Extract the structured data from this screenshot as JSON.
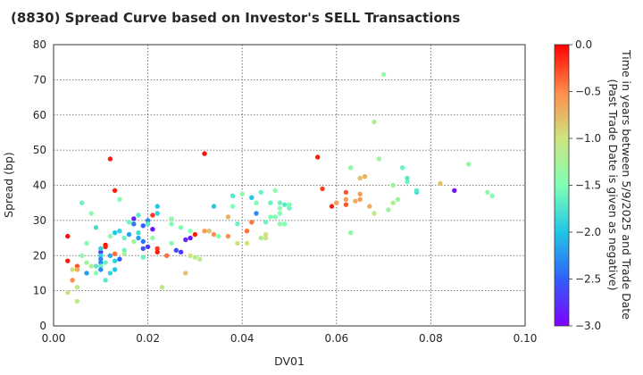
{
  "chart_data": {
    "type": "scatter",
    "title": "(8830)   Spread Curve based on Investor's SELL Transactions",
    "xlabel": "DV01",
    "ylabel": "Spread (bp)",
    "xlim": [
      0,
      0.1
    ],
    "ylim": [
      0,
      80
    ],
    "x_ticks": [
      "0.00",
      "0.02",
      "0.04",
      "0.06",
      "0.08",
      "0.10"
    ],
    "y_ticks": [
      "0",
      "10",
      "20",
      "30",
      "40",
      "50",
      "60",
      "70",
      "80"
    ],
    "grid": true,
    "colorbar": {
      "label_line1": "Time in years between 5/9/2025 and Trade Date",
      "label_line2": "(Past Trade Date is given as negative)",
      "range": [
        -3.0,
        0.0
      ],
      "ticks": [
        "0.0",
        "−0.5",
        "−1.0",
        "−1.5",
        "−2.0",
        "−2.5",
        "−3.0"
      ],
      "colormap": "rainbow"
    },
    "points": [
      [
        0.003,
        25.5,
        -0.05
      ],
      [
        0.003,
        18.5,
        -0.1
      ],
      [
        0.003,
        9.5,
        -1.0
      ],
      [
        0.004,
        16,
        -1.0
      ],
      [
        0.004,
        13,
        -0.5
      ],
      [
        0.005,
        17,
        -0.3
      ],
      [
        0.005,
        16,
        -0.7
      ],
      [
        0.005,
        11,
        -1.1
      ],
      [
        0.005,
        7,
        -1.1
      ],
      [
        0.006,
        35,
        -1.6
      ],
      [
        0.006,
        20,
        -1.4
      ],
      [
        0.007,
        23.5,
        -1.5
      ],
      [
        0.007,
        18,
        -1.3
      ],
      [
        0.007,
        15,
        -2.2
      ],
      [
        0.008,
        17,
        -1.2
      ],
      [
        0.008,
        32,
        -1.4
      ],
      [
        0.009,
        28,
        -1.8
      ],
      [
        0.009,
        17,
        -1.7
      ],
      [
        0.009,
        15,
        -1.5
      ],
      [
        0.01,
        21,
        -2.7
      ],
      [
        0.01,
        22,
        -1.9
      ],
      [
        0.01,
        20,
        -1.9
      ],
      [
        0.01,
        19,
        -2.3
      ],
      [
        0.01,
        18,
        -2.3
      ],
      [
        0.01,
        17,
        -1.6
      ],
      [
        0.01,
        16,
        -2.3
      ],
      [
        0.011,
        23,
        -0.05
      ],
      [
        0.011,
        22.5,
        -0.1
      ],
      [
        0.011,
        18,
        -1.6
      ],
      [
        0.011,
        13,
        -1.7
      ],
      [
        0.012,
        47.5,
        -0.1
      ],
      [
        0.012,
        20,
        -2.1
      ],
      [
        0.012,
        15,
        -1.9
      ],
      [
        0.012,
        25.5,
        -1.4
      ],
      [
        0.013,
        26.5,
        -2.0
      ],
      [
        0.013,
        20.5,
        -0.4
      ],
      [
        0.013,
        18.5,
        -1.9
      ],
      [
        0.013,
        16,
        -2.0
      ],
      [
        0.013,
        38.5,
        -0.1
      ],
      [
        0.014,
        27,
        -1.9
      ],
      [
        0.014,
        19,
        -2.5
      ],
      [
        0.014,
        36,
        -1.5
      ],
      [
        0.015,
        25,
        -1.6
      ],
      [
        0.015,
        21.5,
        -1.6
      ],
      [
        0.015,
        20.5,
        -1.2
      ],
      [
        0.016,
        29.5,
        -1.6
      ],
      [
        0.016,
        26,
        -2.2
      ],
      [
        0.017,
        30.5,
        -2.8
      ],
      [
        0.017,
        29,
        -2.4
      ],
      [
        0.017,
        24,
        -1.3
      ],
      [
        0.018,
        31.5,
        -1.7
      ],
      [
        0.018,
        26.5,
        -1.8
      ],
      [
        0.018,
        25,
        -2.2
      ],
      [
        0.019,
        28.5,
        -2.5
      ],
      [
        0.019,
        24,
        -2.4
      ],
      [
        0.019,
        22,
        -2.6
      ],
      [
        0.019,
        19.5,
        -1.6
      ],
      [
        0.02,
        30,
        -2.3
      ],
      [
        0.02,
        29,
        -1.7
      ],
      [
        0.02,
        22.5,
        -2.7
      ],
      [
        0.021,
        31.5,
        -0.2
      ],
      [
        0.021,
        27.5,
        -2.9
      ],
      [
        0.021,
        25,
        -1.4
      ],
      [
        0.022,
        34,
        -2.0
      ],
      [
        0.022,
        32,
        -1.9
      ],
      [
        0.022,
        22,
        -0.2
      ],
      [
        0.022,
        21,
        -0.1
      ],
      [
        0.023,
        11,
        -1.1
      ],
      [
        0.024,
        20,
        -0.4
      ],
      [
        0.025,
        30.5,
        -1.4
      ],
      [
        0.025,
        29,
        -1.5
      ],
      [
        0.025,
        23.5,
        -1.4
      ],
      [
        0.026,
        21.5,
        -2.6
      ],
      [
        0.027,
        28,
        -1.5
      ],
      [
        0.027,
        21,
        -2.7
      ],
      [
        0.028,
        15,
        -0.8
      ],
      [
        0.028,
        24.5,
        -2.8
      ],
      [
        0.029,
        27,
        -1.5
      ],
      [
        0.029,
        25,
        -2.9
      ],
      [
        0.029,
        20,
        -1.0
      ],
      [
        0.03,
        26,
        -0.1
      ],
      [
        0.03,
        19.5,
        -1.2
      ],
      [
        0.031,
        19,
        -1.1
      ],
      [
        0.032,
        49,
        -0.05
      ],
      [
        0.032,
        27,
        -0.6
      ],
      [
        0.033,
        27,
        -0.8
      ],
      [
        0.034,
        34,
        -2.0
      ],
      [
        0.034,
        26,
        -0.5
      ],
      [
        0.035,
        25.5,
        -1.5
      ],
      [
        0.037,
        31,
        -0.7
      ],
      [
        0.037,
        25.5,
        -0.5
      ],
      [
        0.038,
        37,
        -1.7
      ],
      [
        0.038,
        34,
        -1.5
      ],
      [
        0.039,
        29,
        -1.6
      ],
      [
        0.039,
        23.5,
        -1.0
      ],
      [
        0.04,
        37.5,
        -1.4
      ],
      [
        0.041,
        27,
        -0.4
      ],
      [
        0.041,
        23.5,
        -1.0
      ],
      [
        0.042,
        36.5,
        -2.0
      ],
      [
        0.042,
        29.5,
        -0.4
      ],
      [
        0.043,
        35,
        -1.5
      ],
      [
        0.043,
        32,
        -2.3
      ],
      [
        0.044,
        38,
        -1.6
      ],
      [
        0.044,
        25,
        -1.2
      ],
      [
        0.045,
        29.5,
        -1.6
      ],
      [
        0.045,
        26,
        -1.0
      ],
      [
        0.045,
        25,
        -1.0
      ],
      [
        0.046,
        31,
        -1.5
      ],
      [
        0.046,
        35,
        -1.6
      ],
      [
        0.047,
        38.5,
        -1.4
      ],
      [
        0.047,
        31,
        -1.5
      ],
      [
        0.048,
        33.5,
        -1.4
      ],
      [
        0.048,
        32,
        -1.5
      ],
      [
        0.048,
        29,
        -1.4
      ],
      [
        0.048,
        35,
        -1.6
      ],
      [
        0.049,
        29,
        -1.5
      ],
      [
        0.049,
        34.5,
        -1.7
      ],
      [
        0.05,
        33.5,
        -1.6
      ],
      [
        0.05,
        34.5,
        -1.5
      ],
      [
        0.056,
        48,
        -0.1
      ],
      [
        0.057,
        39,
        -0.2
      ],
      [
        0.059,
        34,
        -0.1
      ],
      [
        0.06,
        35,
        -0.6
      ],
      [
        0.062,
        38,
        -0.3
      ],
      [
        0.062,
        34.5,
        -0.3
      ],
      [
        0.062,
        36,
        -0.6
      ],
      [
        0.063,
        45,
        -1.4
      ],
      [
        0.063,
        26.5,
        -1.4
      ],
      [
        0.064,
        35.5,
        -0.7
      ],
      [
        0.065,
        36,
        -0.6
      ],
      [
        0.065,
        37.5,
        -0.6
      ],
      [
        0.065,
        42,
        -0.8
      ],
      [
        0.066,
        42.5,
        -0.7
      ],
      [
        0.067,
        34,
        -0.7
      ],
      [
        0.068,
        32,
        -1.1
      ],
      [
        0.068,
        58,
        -1.2
      ],
      [
        0.069,
        47.5,
        -1.3
      ],
      [
        0.07,
        71.5,
        -1.4
      ],
      [
        0.071,
        33,
        -1.3
      ],
      [
        0.072,
        40,
        -1.3
      ],
      [
        0.072,
        35,
        -1.2
      ],
      [
        0.073,
        36,
        -1.3
      ],
      [
        0.074,
        45,
        -1.6
      ],
      [
        0.075,
        41,
        -1.6
      ],
      [
        0.075,
        42,
        -1.7
      ],
      [
        0.077,
        38,
        -1.8
      ],
      [
        0.077,
        38.5,
        -1.7
      ],
      [
        0.082,
        40.5,
        -0.8
      ],
      [
        0.085,
        38.5,
        -2.9
      ],
      [
        0.088,
        46,
        -1.3
      ],
      [
        0.092,
        38,
        -1.4
      ],
      [
        0.093,
        37,
        -1.5
      ]
    ]
  }
}
